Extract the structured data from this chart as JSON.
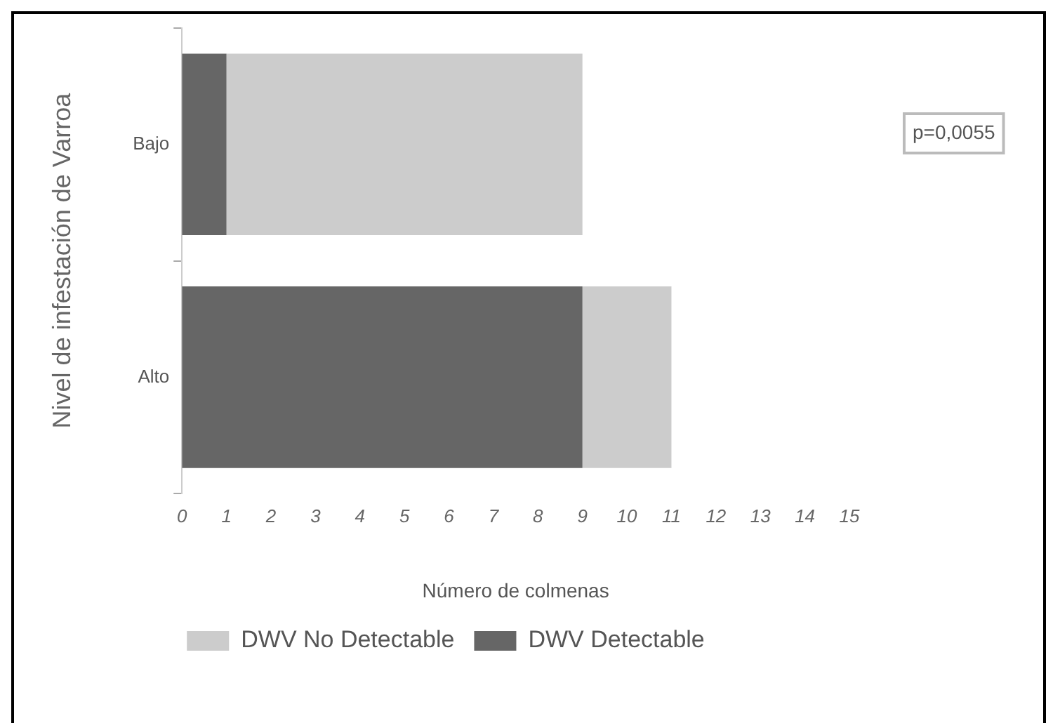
{
  "chart_data": {
    "type": "bar",
    "orientation": "horizontal",
    "stacked": true,
    "xlabel": "Número de colmenas",
    "ylabel": "Nivel de infestación de Varroa",
    "categories": [
      "Bajo",
      "Alto"
    ],
    "series": [
      {
        "name": "DWV Detectable",
        "color": "#666666",
        "values": [
          1,
          9
        ]
      },
      {
        "name": "DWV No Detectable",
        "color": "#cccccc",
        "values": [
          8,
          2
        ]
      }
    ],
    "xlim": [
      0,
      15
    ],
    "xticks": [
      0,
      1,
      2,
      3,
      4,
      5,
      6,
      7,
      8,
      9,
      10,
      11,
      12,
      13,
      14,
      15
    ],
    "grid": false,
    "legend": "bottom",
    "annotations": [
      "p=0,0055"
    ]
  }
}
